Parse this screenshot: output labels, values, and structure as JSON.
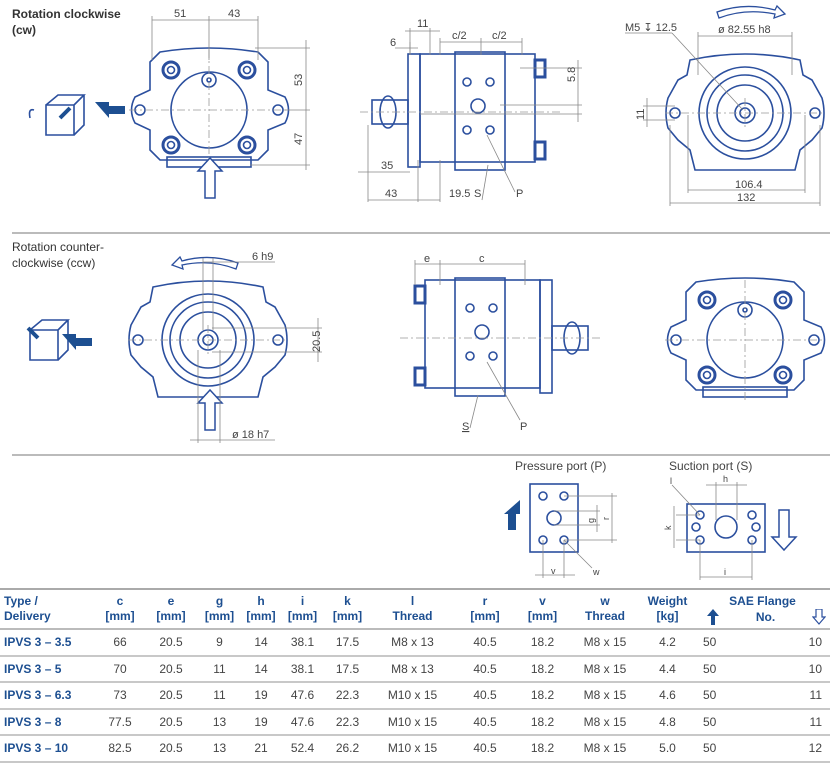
{
  "colors": {
    "drawing_blue": "#2b4f9e",
    "heading_blue": "#1d4f91",
    "dimension_gray": "#888888"
  },
  "cw": {
    "title_line1": "Rotation clockwise",
    "title_line2": "(cw)",
    "front": {
      "dim_a": "51",
      "dim_b": "43",
      "dim_c": "53",
      "dim_d": "47"
    },
    "side": {
      "dim_11": "11",
      "dim_6": "6",
      "dim_c2a": "c/2",
      "dim_c2b": "c/2",
      "dim_58": "5.8",
      "dim_35": "35",
      "dim_43": "43",
      "dim_195": "19.5",
      "label_s": "S",
      "label_p": "P"
    },
    "rear": {
      "thread": "M5 ↧ 12.5",
      "pilot": "ø 82.55 h8",
      "dim_11": "11",
      "dim_1064": "106.4",
      "dim_132": "132"
    }
  },
  "ccw": {
    "title_line1": "Rotation counter-",
    "title_line2": "clockwise (ccw)",
    "front": {
      "key": "6 h9",
      "dim_205": "20.5",
      "shaft": "ø 18 h7"
    },
    "side": {
      "dim_e": "e",
      "dim_c": "c",
      "label_s": "S",
      "label_p": "P"
    }
  },
  "ports": {
    "pressure": {
      "title": "Pressure port (P)",
      "g": "g",
      "r": "r",
      "v": "v",
      "w": "w"
    },
    "suction": {
      "title": "Suction port (S)",
      "l": "l",
      "h": "h",
      "k": "k",
      "i": "i"
    }
  },
  "table": {
    "headers": {
      "type": [
        "Type /",
        "Delivery"
      ],
      "c": [
        "c",
        "[mm]"
      ],
      "e": [
        "e",
        "[mm]"
      ],
      "g": [
        "g",
        "[mm]"
      ],
      "h": [
        "h",
        "[mm]"
      ],
      "i": [
        "i",
        "[mm]"
      ],
      "k": [
        "k",
        "[mm]"
      ],
      "l": [
        "l",
        "Thread"
      ],
      "r": [
        "r",
        "[mm]"
      ],
      "v": [
        "v",
        "[mm]"
      ],
      "w": [
        "w",
        "Thread"
      ],
      "weight": [
        "Weight",
        "[kg]"
      ],
      "sae": "SAE Flange",
      "sae_no": "No."
    },
    "rows": [
      [
        "IPVS 3 – 3.5",
        "66",
        "20.5",
        "9",
        "14",
        "38.1",
        "17.5",
        "M8 x 13",
        "40.5",
        "18.2",
        "M8 x 15",
        "4.2",
        "50",
        "10"
      ],
      [
        "IPVS 3 – 5",
        "70",
        "20.5",
        "11",
        "14",
        "38.1",
        "17.5",
        "M8 x 13",
        "40.5",
        "18.2",
        "M8 x 15",
        "4.4",
        "50",
        "10"
      ],
      [
        "IPVS 3 – 6.3",
        "73",
        "20.5",
        "11",
        "19",
        "47.6",
        "22.3",
        "M10 x 15",
        "40.5",
        "18.2",
        "M8 x 15",
        "4.6",
        "50",
        "11"
      ],
      [
        "IPVS 3 – 8",
        "77.5",
        "20.5",
        "13",
        "19",
        "47.6",
        "22.3",
        "M10 x 15",
        "40.5",
        "18.2",
        "M8 x 15",
        "4.8",
        "50",
        "11"
      ],
      [
        "IPVS 3 – 10",
        "82.5",
        "20.5",
        "13",
        "21",
        "52.4",
        "26.2",
        "M10 x 15",
        "40.5",
        "18.2",
        "M8 x 15",
        "5.0",
        "50",
        "12"
      ]
    ]
  }
}
